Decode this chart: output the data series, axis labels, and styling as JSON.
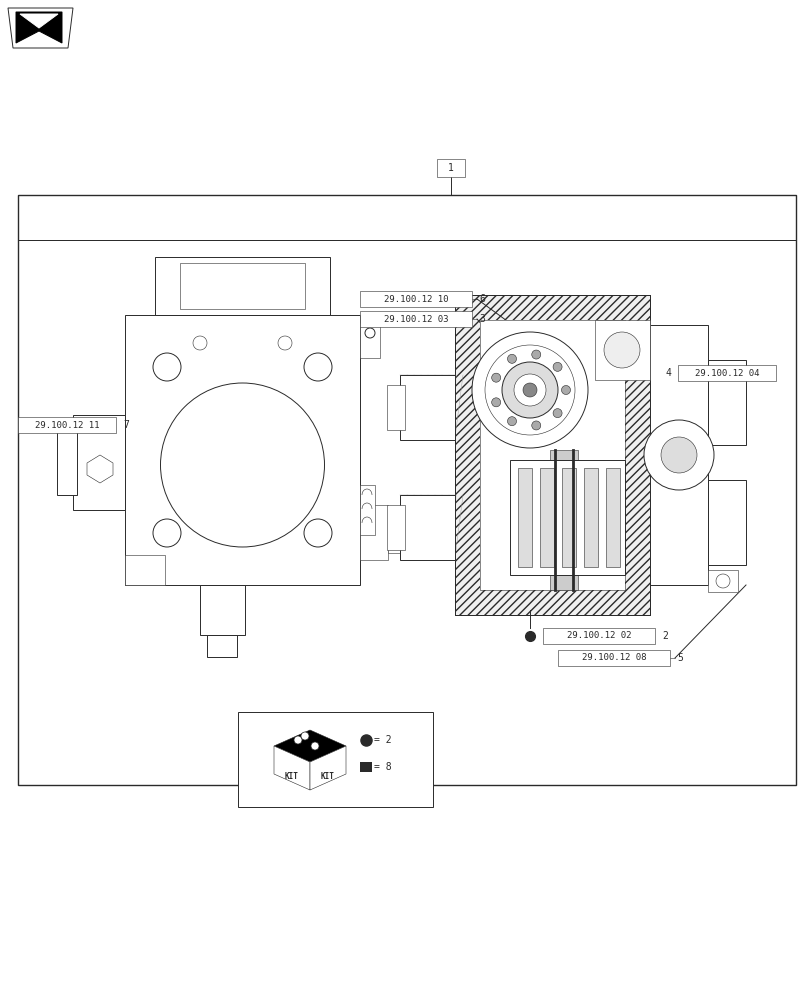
{
  "bg_color": "#ffffff",
  "part_numbers": {
    "pn2": "29.100.12 02",
    "pn3": "29.100.12 03",
    "pn4": "29.100.12 04",
    "pn5": "29.100.12 08",
    "pn6": "29.100.12 10",
    "pn7": "29.100.12 11"
  },
  "figsize": [
    8.12,
    10.0
  ],
  "dpi": 100,
  "line_color": "#2a2a2a",
  "gray1": "#999999",
  "gray2": "#cccccc",
  "gray3": "#eeeeee"
}
